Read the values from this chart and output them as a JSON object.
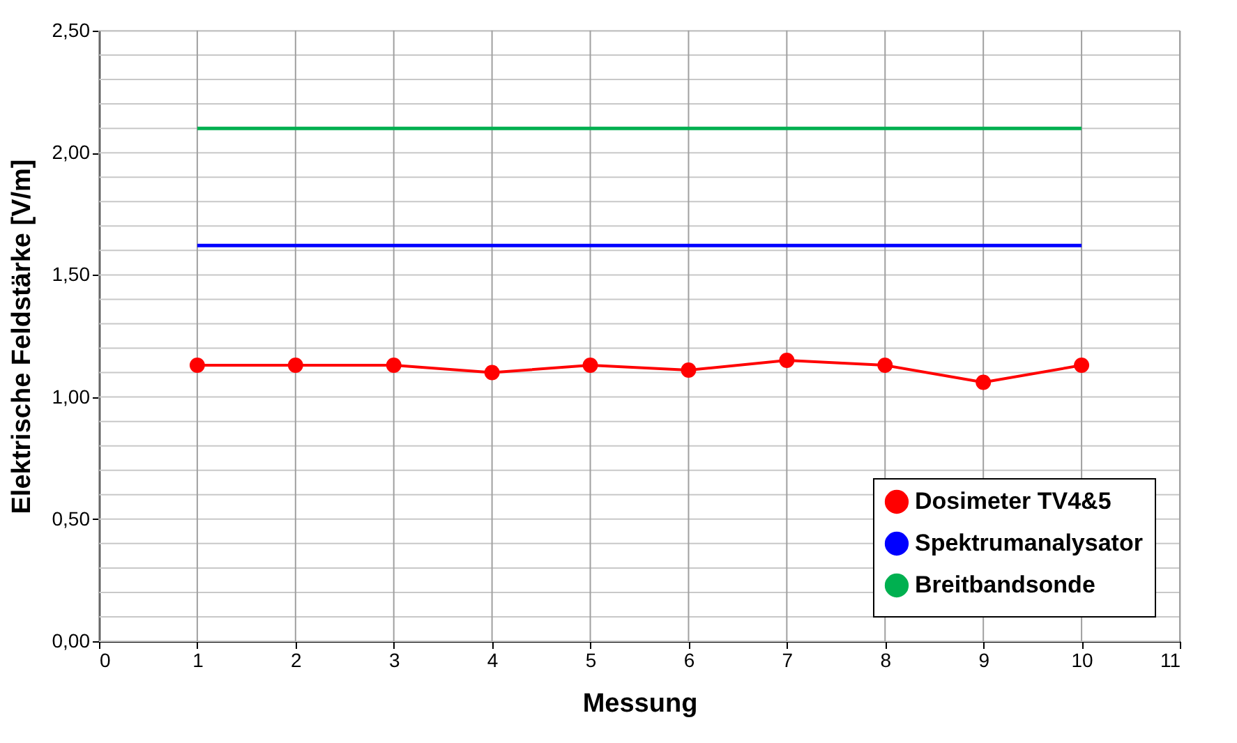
{
  "chart_data": {
    "type": "line",
    "xlabel": "Messung",
    "ylabel": "Elektrische Feldstärke [V/m]",
    "x": [
      1,
      2,
      3,
      4,
      5,
      6,
      7,
      8,
      9,
      10
    ],
    "series": [
      {
        "name": "Dosimeter TV4&5",
        "color": "#ff0000",
        "marker": "circle",
        "values": [
          1.13,
          1.13,
          1.13,
          1.1,
          1.13,
          1.11,
          1.15,
          1.13,
          1.06,
          1.13
        ]
      },
      {
        "name": "Spektrumanalysator",
        "color": "#0000ff",
        "marker": "none",
        "values": [
          1.62,
          1.62,
          1.62,
          1.62,
          1.62,
          1.62,
          1.62,
          1.62,
          1.62,
          1.62
        ]
      },
      {
        "name": "Breitbandsonde",
        "color": "#00b050",
        "marker": "none",
        "values": [
          2.1,
          2.1,
          2.1,
          2.1,
          2.1,
          2.1,
          2.1,
          2.1,
          2.1,
          2.1
        ]
      }
    ],
    "xlim": [
      0,
      11
    ],
    "xticks": [
      0,
      1,
      2,
      3,
      4,
      5,
      6,
      7,
      8,
      9,
      10,
      11
    ],
    "ylim": [
      0,
      2.5
    ],
    "yticks": [
      {
        "value": 0,
        "label": "0,00"
      },
      {
        "value": 0.5,
        "label": "0,50"
      },
      {
        "value": 1.0,
        "label": "1,00"
      },
      {
        "value": 1.5,
        "label": "1,50"
      },
      {
        "value": 2.0,
        "label": "2,00"
      },
      {
        "value": 2.5,
        "label": "2,50"
      }
    ],
    "grid": true,
    "legend": "bottom right",
    "line_style": "solid"
  }
}
